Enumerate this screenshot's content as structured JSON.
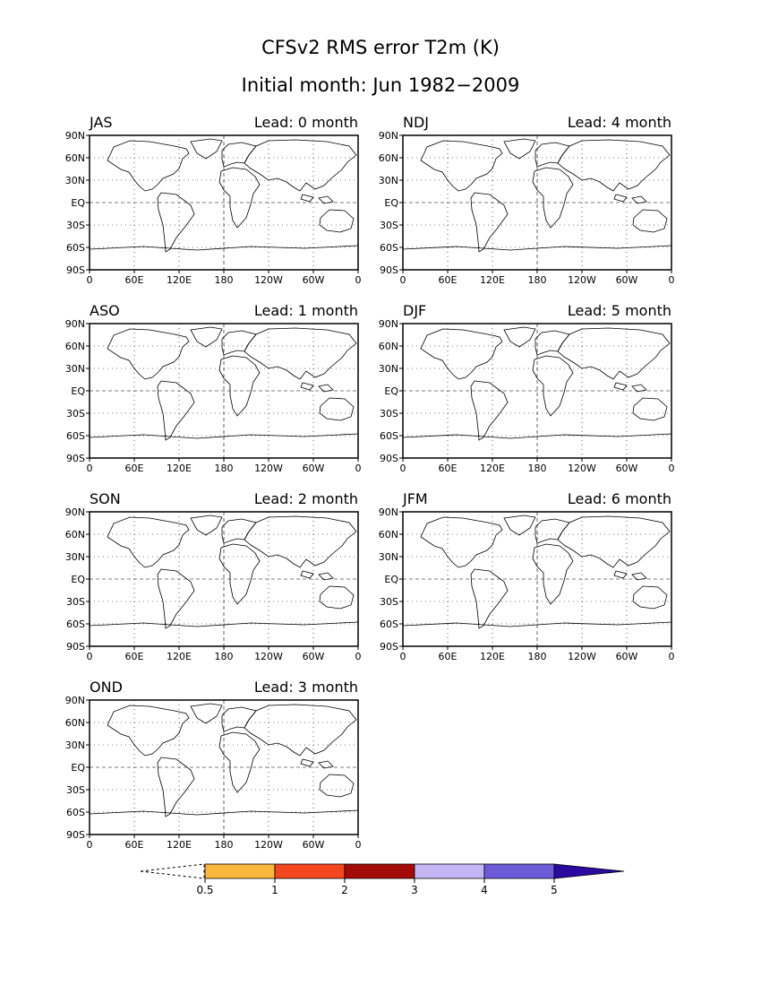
{
  "title": "CFSv2 RMS error T2m (K)",
  "subtitle": "Initial month: Jun 1982−2009",
  "lat_labels": [
    "90N",
    "60N",
    "30N",
    "EQ",
    "30S",
    "60S",
    "90S"
  ],
  "lon_labels": [
    "0",
    "60E",
    "120E",
    "180",
    "120W",
    "60W",
    "0"
  ],
  "panels": [
    {
      "season": "JAS",
      "lead": "Lead: 0 month"
    },
    {
      "season": "NDJ",
      "lead": "Lead: 4 month"
    },
    {
      "season": "ASO",
      "lead": "Lead: 1 month"
    },
    {
      "season": "DJF",
      "lead": "Lead: 5 month"
    },
    {
      "season": "SON",
      "lead": "Lead: 2 month"
    },
    {
      "season": "JFM",
      "lead": "Lead: 6 month"
    },
    {
      "season": "OND",
      "lead": "Lead: 3 month"
    }
  ],
  "colorbar": {
    "labels": [
      "0.5",
      "1",
      "2",
      "3",
      "4",
      "5"
    ],
    "colors": [
      "#f9b73b",
      "#f5471e",
      "#a50b06",
      "#c4b6f5",
      "#6d5bd9",
      "#2a0aa0"
    ]
  }
}
